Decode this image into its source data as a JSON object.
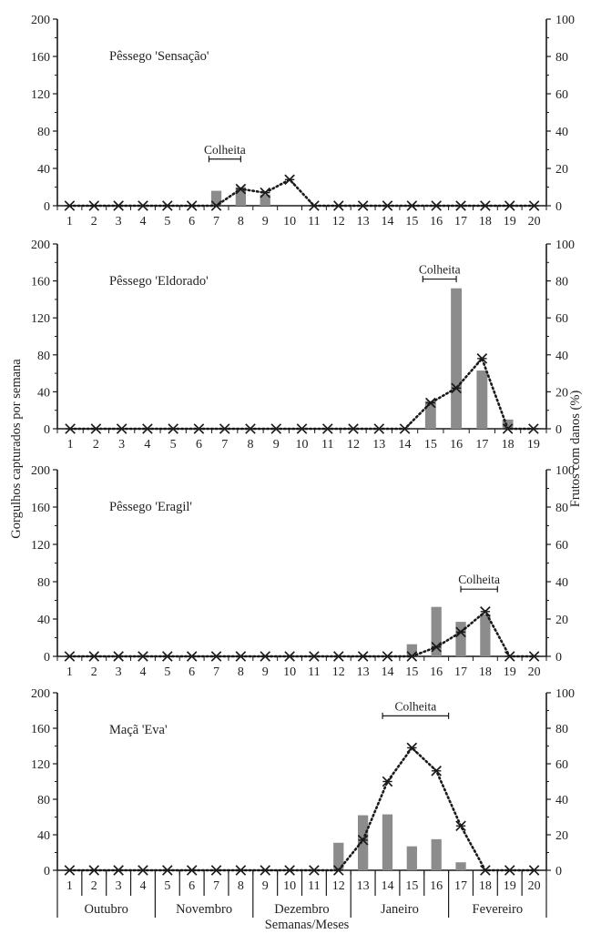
{
  "y_axis_label": "Gorgulhos capturados por semana",
  "y2_axis_label": "Frutos com danos (%)",
  "x_axis_label": "Semanas/Meses",
  "months": [
    "Outubro",
    "Novembro",
    "Dezembro",
    "Janeiro",
    "Fevereiro"
  ],
  "colors": {
    "bar": "#8c8c8c",
    "line": "#1a1a1a",
    "axis": "#1a1a1a"
  },
  "chart_data": [
    {
      "type": "bar",
      "title": "Pêssego 'Sensação'",
      "weeks": [
        1,
        2,
        3,
        4,
        5,
        6,
        7,
        8,
        9,
        10,
        11,
        12,
        13,
        14,
        15,
        16,
        17,
        18,
        19,
        20
      ],
      "ylim": [
        0,
        200
      ],
      "y_ticks": [
        0,
        40,
        80,
        120,
        160,
        200
      ],
      "y2lim": [
        0,
        100
      ],
      "y2_ticks": [
        0,
        20,
        40,
        60,
        80,
        100
      ],
      "series": [
        {
          "type": "bar",
          "values": [
            0,
            0,
            0,
            0,
            0,
            0,
            16,
            20,
            12,
            0,
            0,
            0,
            0,
            0,
            0,
            0,
            0,
            0,
            0,
            0
          ]
        },
        {
          "type": "line",
          "axis": "right",
          "values": [
            0,
            0,
            0,
            0,
            0,
            0,
            0,
            9,
            7,
            14,
            0,
            0,
            0,
            0,
            0,
            0,
            0,
            0,
            0,
            0
          ]
        }
      ],
      "annotation": {
        "text": "Colheita",
        "from": 6.7,
        "to": 8
      }
    },
    {
      "type": "bar",
      "title": "Pêssego 'Eldorado'",
      "weeks": [
        1,
        2,
        3,
        4,
        5,
        6,
        7,
        8,
        9,
        10,
        11,
        12,
        13,
        14,
        15,
        16,
        17,
        18,
        19
      ],
      "ylim": [
        0,
        200
      ],
      "y_ticks": [
        0,
        40,
        80,
        120,
        160,
        200
      ],
      "y2lim": [
        0,
        100
      ],
      "y2_ticks": [
        0,
        20,
        40,
        60,
        80,
        100
      ],
      "series": [
        {
          "type": "bar",
          "values": [
            0,
            0,
            0,
            0,
            0,
            0,
            0,
            0,
            0,
            0,
            0,
            0,
            0,
            0,
            30,
            152,
            63,
            10,
            0
          ]
        },
        {
          "type": "line",
          "axis": "right",
          "values": [
            0,
            0,
            0,
            0,
            0,
            0,
            0,
            0,
            0,
            0,
            0,
            0,
            0,
            0,
            14,
            22,
            38,
            0,
            0
          ]
        }
      ],
      "annotation": {
        "text": "Colheita",
        "from": 14.7,
        "to": 16
      }
    },
    {
      "type": "bar",
      "title": "Pêssego 'Eragil'",
      "weeks": [
        1,
        2,
        3,
        4,
        5,
        6,
        7,
        8,
        9,
        10,
        11,
        12,
        13,
        14,
        15,
        16,
        17,
        18,
        19,
        20
      ],
      "ylim": [
        0,
        200
      ],
      "y_ticks": [
        0,
        40,
        80,
        120,
        160,
        200
      ],
      "y2lim": [
        0,
        100
      ],
      "y2_ticks": [
        0,
        20,
        40,
        60,
        80,
        100
      ],
      "series": [
        {
          "type": "bar",
          "values": [
            0,
            0,
            0,
            0,
            0,
            0,
            0,
            0,
            0,
            0,
            0,
            0,
            0,
            0,
            13,
            53,
            37,
            45,
            0,
            0
          ]
        },
        {
          "type": "line",
          "axis": "right",
          "values": [
            0,
            0,
            0,
            0,
            0,
            0,
            0,
            0,
            0,
            0,
            0,
            0,
            0,
            0,
            0,
            5,
            13,
            24,
            0,
            0
          ]
        }
      ],
      "annotation": {
        "text": "Colheita",
        "from": 17,
        "to": 18.5
      }
    },
    {
      "type": "bar",
      "title": "Maçã 'Eva'",
      "weeks": [
        1,
        2,
        3,
        4,
        5,
        6,
        7,
        8,
        9,
        10,
        11,
        12,
        13,
        14,
        15,
        16,
        17,
        18,
        19,
        20
      ],
      "ylim": [
        0,
        200
      ],
      "y_ticks": [
        0,
        40,
        80,
        120,
        160,
        200
      ],
      "y2lim": [
        0,
        100
      ],
      "y2_ticks": [
        0,
        20,
        40,
        60,
        80,
        100
      ],
      "series": [
        {
          "type": "bar",
          "values": [
            0,
            0,
            0,
            0,
            0,
            0,
            0,
            0,
            0,
            0,
            0,
            31,
            62,
            63,
            27,
            35,
            9,
            0,
            0,
            0
          ]
        },
        {
          "type": "line",
          "axis": "right",
          "values": [
            0,
            0,
            0,
            0,
            0,
            0,
            0,
            0,
            0,
            0,
            0,
            0,
            17,
            50,
            69,
            56,
            25,
            0,
            0,
            0
          ]
        }
      ],
      "annotation": {
        "text": "Colheita",
        "from": 13.8,
        "to": 16.5
      }
    }
  ]
}
